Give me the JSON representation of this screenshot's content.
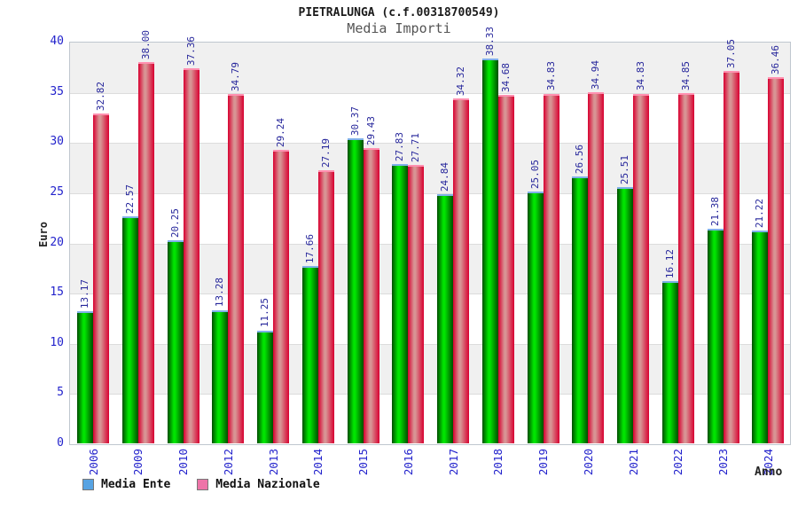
{
  "title": "PIETRALUNGA (c.f.00318700549)",
  "subtitle": "Media Importi",
  "chart_data": {
    "type": "bar",
    "title": "PIETRALUNGA (c.f.00318700549)",
    "subtitle": "Media Importi",
    "xlabel": "Anno",
    "ylabel": "Euro",
    "ylim": [
      0,
      40
    ],
    "yticks": [
      0,
      5,
      10,
      15,
      20,
      25,
      30,
      35,
      40
    ],
    "grid": "horizontal-bands-alternating",
    "value_labels": "rotated-90-above-bars",
    "legend_position": "bottom-left",
    "categories": [
      "2006",
      "2009",
      "2010",
      "2012",
      "2013",
      "2014",
      "2015",
      "2016",
      "2017",
      "2018",
      "2019",
      "2020",
      "2021",
      "2022",
      "2023",
      "2024"
    ],
    "series": [
      {
        "name": "Media Ente",
        "edge_color": "#004d00",
        "mid_color": "#00e400",
        "cap_color": "#7fb0e8",
        "values": [
          13.17,
          22.57,
          20.25,
          13.28,
          11.25,
          17.66,
          30.37,
          27.83,
          24.84,
          38.33,
          25.05,
          26.56,
          25.51,
          16.12,
          21.38,
          21.22
        ]
      },
      {
        "name": "Media Nazionale",
        "edge_color": "#d80030",
        "mid_color": "#d89494",
        "cap_color": "#ff90b0",
        "values": [
          32.82,
          38.0,
          37.36,
          34.79,
          29.24,
          27.19,
          29.43,
          27.71,
          34.32,
          34.68,
          34.83,
          34.94,
          34.83,
          34.85,
          37.05,
          36.46
        ]
      }
    ],
    "legend": [
      {
        "label": "Media Ente",
        "swatch_color": "#57a3e3"
      },
      {
        "label": "Media Nazionale",
        "swatch_color": "#ee74a8"
      }
    ],
    "label_color": "#26269b",
    "axis_tick_color": "#2323cc"
  }
}
